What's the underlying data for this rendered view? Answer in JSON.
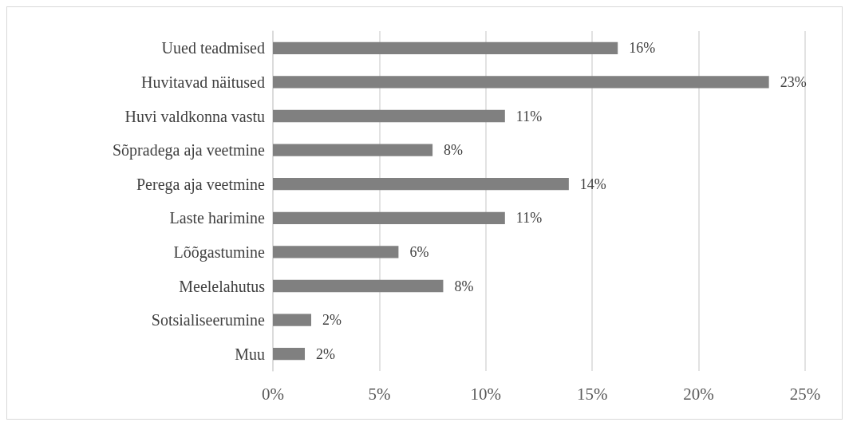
{
  "chart_data": {
    "type": "bar",
    "orientation": "horizontal",
    "categories": [
      "Uued teadmised",
      "Huvitavad näitused",
      "Huvi valdkonna vastu",
      "Sõpradega aja veetmine",
      "Perega aja veetmine",
      "Laste harimine",
      "Lõõgastumine",
      "Meelelahutus",
      "Sotsialiseerumine",
      "Muu"
    ],
    "values": [
      16.2,
      23.3,
      10.9,
      7.5,
      13.9,
      10.9,
      5.9,
      8.0,
      1.8,
      1.5
    ],
    "value_labels": [
      "16%",
      "23%",
      "11%",
      "8%",
      "14%",
      "11%",
      "6%",
      "8%",
      "2%",
      "2%"
    ],
    "color": "#808080",
    "xlim": [
      0,
      25
    ],
    "xticks": [
      {
        "value": 0,
        "label": "0%"
      },
      {
        "value": 5,
        "label": "5%"
      },
      {
        "value": 10,
        "label": "10%"
      },
      {
        "value": 15,
        "label": "15%"
      },
      {
        "value": 20,
        "label": "20%"
      },
      {
        "value": 25,
        "label": "25%"
      }
    ],
    "grid": "x"
  }
}
